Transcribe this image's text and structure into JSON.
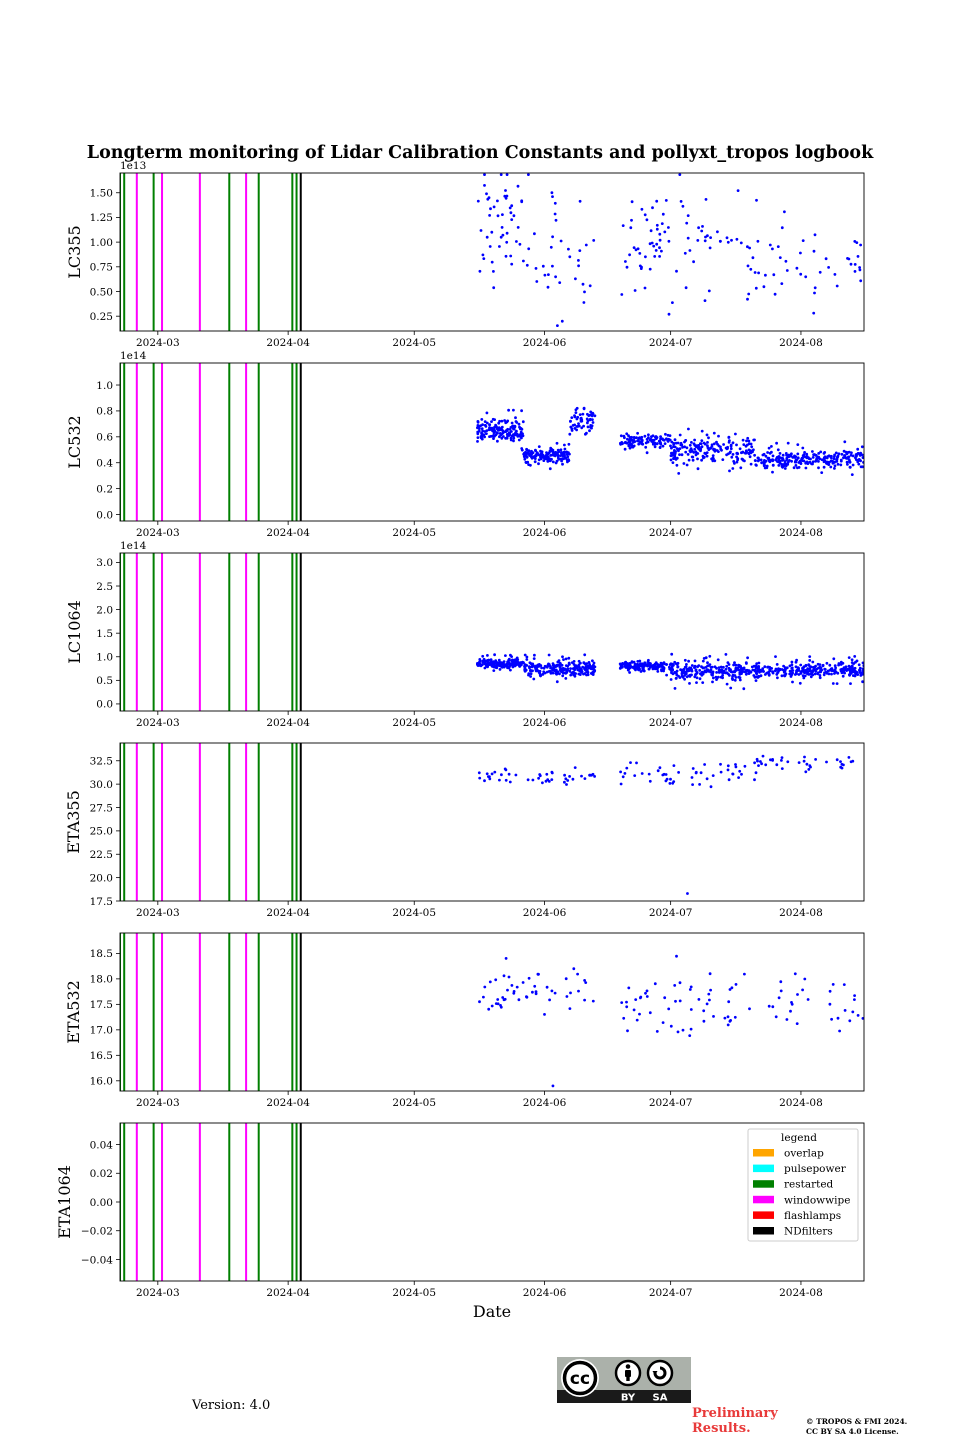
{
  "figure": {
    "title": "Longterm monitoring of Lidar Calibration Constants and pollyxt_tropos logbook",
    "xlabel": "Date"
  },
  "footer": {
    "version": "Version: 4.0",
    "preliminary": "Preliminary\nResults.",
    "copyright": "© TROPOS & FMI 2024.\nCC BY SA 4.0 License.",
    "cc_badge": {
      "by": "BY",
      "sa": "SA",
      "cc": "cc"
    }
  },
  "colors": {
    "overlap": "#ffa500",
    "pulsepower": "#00ffff",
    "restarted": "#008000",
    "windowwipe": "#ff00ff",
    "flashlamps": "#ff0000",
    "NDfilters": "#000000",
    "points": "#0000ff"
  },
  "chart_data": {
    "type": "scatter",
    "x_axis": {
      "type": "date",
      "range": [
        "2024-02-21",
        "2024-08-16"
      ],
      "ticks": [
        {
          "date": "2024-03-01",
          "label": "2024-03"
        },
        {
          "date": "2024-04-01",
          "label": "2024-04"
        },
        {
          "date": "2024-05-01",
          "label": "2024-05"
        },
        {
          "date": "2024-06-01",
          "label": "2024-06"
        },
        {
          "date": "2024-07-01",
          "label": "2024-07"
        },
        {
          "date": "2024-08-01",
          "label": "2024-08"
        }
      ]
    },
    "logbook": {
      "legend_title": "legend",
      "legend_placement": "top-right of last panel",
      "categories": [
        "overlap",
        "pulsepower",
        "restarted",
        "windowwipe",
        "flashlamps",
        "NDfilters"
      ],
      "events": [
        {
          "date": "2024-02-21",
          "type": "restarted"
        },
        {
          "date": "2024-02-22",
          "type": "restarted"
        },
        {
          "date": "2024-02-25",
          "type": "windowwipe"
        },
        {
          "date": "2024-02-29",
          "type": "restarted"
        },
        {
          "date": "2024-03-02",
          "type": "windowwipe"
        },
        {
          "date": "2024-03-11",
          "type": "windowwipe"
        },
        {
          "date": "2024-03-18",
          "type": "restarted"
        },
        {
          "date": "2024-03-22",
          "type": "windowwipe"
        },
        {
          "date": "2024-03-25",
          "type": "restarted"
        },
        {
          "date": "2024-04-02",
          "type": "restarted"
        },
        {
          "date": "2024-04-03",
          "type": "restarted"
        },
        {
          "date": "2024-04-04",
          "type": "NDfilters"
        }
      ]
    },
    "panels": [
      {
        "ylabel": "LC355",
        "offset_label": "1e13",
        "ylim": [
          0.1,
          1.7
        ],
        "yticks": [
          {
            "v": 0.25,
            "l": "0.25"
          },
          {
            "v": 0.5,
            "l": "0.50"
          },
          {
            "v": 0.75,
            "l": "0.75"
          },
          {
            "v": 1.0,
            "l": "1.00"
          },
          {
            "v": 1.25,
            "l": "1.25"
          },
          {
            "v": 1.5,
            "l": "1.50"
          }
        ],
        "series": [
          {
            "start": "2024-05-16",
            "end": "2024-05-26",
            "n": 45,
            "base": 1.2,
            "spread": 0.5,
            "outlier": 0.1
          },
          {
            "start": "2024-05-26",
            "end": "2024-06-13",
            "n": 40,
            "base": 0.9,
            "spread": 0.55,
            "outlier": 0.1
          },
          {
            "start": "2024-06-19",
            "end": "2024-07-01",
            "n": 45,
            "base": 1.0,
            "spread": 0.5,
            "outlier": 0.1
          },
          {
            "start": "2024-07-01",
            "end": "2024-07-21",
            "n": 40,
            "base": 1.0,
            "spread": 0.5,
            "outlier": 0.1
          },
          {
            "start": "2024-07-21",
            "end": "2024-08-16",
            "n": 45,
            "base": 0.8,
            "spread": 0.35,
            "outlier": 0.1
          }
        ]
      },
      {
        "ylabel": "LC532",
        "offset_label": "1e14",
        "ylim": [
          -0.05,
          1.17
        ],
        "yticks": [
          {
            "v": 0.0,
            "l": "0.0"
          },
          {
            "v": 0.2,
            "l": "0.2"
          },
          {
            "v": 0.4,
            "l": "0.4"
          },
          {
            "v": 0.6,
            "l": "0.6"
          },
          {
            "v": 0.8,
            "l": "0.8"
          },
          {
            "v": 1.0,
            "l": "1.0"
          }
        ],
        "series": [
          {
            "start": "2024-05-16",
            "end": "2024-05-27",
            "n": 160,
            "base": 0.65,
            "spread": 0.08,
            "outlier": 0.05
          },
          {
            "start": "2024-05-27",
            "end": "2024-06-07",
            "n": 160,
            "base": 0.45,
            "spread": 0.06,
            "outlier": 0.05
          },
          {
            "start": "2024-06-07",
            "end": "2024-06-13",
            "n": 60,
            "base": 0.72,
            "spread": 0.1,
            "outlier": 0.1
          },
          {
            "start": "2024-06-19",
            "end": "2024-07-01",
            "n": 110,
            "base": 0.57,
            "spread": 0.05,
            "outlier": 0.05
          },
          {
            "start": "2024-07-01",
            "end": "2024-07-21",
            "n": 200,
            "base": 0.5,
            "spread": 0.1,
            "outlier": 0.1
          },
          {
            "start": "2024-07-21",
            "end": "2024-08-16",
            "n": 260,
            "base": 0.43,
            "spread": 0.07,
            "outlier": 0.08
          }
        ]
      },
      {
        "ylabel": "LC1064",
        "offset_label": "1e14",
        "ylim": [
          -0.15,
          3.2
        ],
        "yticks": [
          {
            "v": 0.0,
            "l": "0.0"
          },
          {
            "v": 0.5,
            "l": "0.5"
          },
          {
            "v": 1.0,
            "l": "1.0"
          },
          {
            "v": 1.5,
            "l": "1.5"
          },
          {
            "v": 2.0,
            "l": "2.0"
          },
          {
            "v": 2.5,
            "l": "2.5"
          },
          {
            "v": 3.0,
            "l": "3.0"
          }
        ],
        "series": [
          {
            "start": "2024-05-16",
            "end": "2024-05-27",
            "n": 170,
            "base": 0.85,
            "spread": 0.1,
            "outlier": 0.04
          },
          {
            "start": "2024-05-27",
            "end": "2024-06-13",
            "n": 230,
            "base": 0.75,
            "spread": 0.15,
            "outlier": 0.08
          },
          {
            "start": "2024-06-19",
            "end": "2024-07-01",
            "n": 150,
            "base": 0.8,
            "spread": 0.1,
            "outlier": 0.05
          },
          {
            "start": "2024-07-01",
            "end": "2024-07-21",
            "n": 220,
            "base": 0.7,
            "spread": 0.2,
            "outlier": 0.1
          },
          {
            "start": "2024-07-21",
            "end": "2024-08-16",
            "n": 280,
            "base": 0.72,
            "spread": 0.15,
            "outlier": 0.08
          }
        ]
      },
      {
        "ylabel": "ETA355",
        "offset_label": "",
        "ylim": [
          17.5,
          34.4
        ],
        "yticks": [
          {
            "v": 17.5,
            "l": "17.5"
          },
          {
            "v": 20.0,
            "l": "20.0"
          },
          {
            "v": 22.5,
            "l": "22.5"
          },
          {
            "v": 25.0,
            "l": "25.0"
          },
          {
            "v": 27.5,
            "l": "27.5"
          },
          {
            "v": 30.0,
            "l": "30.0"
          },
          {
            "v": 32.5,
            "l": "32.5"
          }
        ],
        "series": [
          {
            "start": "2024-05-16",
            "end": "2024-06-13",
            "n": 45,
            "base": 30.8,
            "spread": 0.9,
            "outlier": 0.0
          },
          {
            "start": "2024-06-19",
            "end": "2024-07-21",
            "n": 50,
            "base": 31.0,
            "spread": 1.2,
            "outlier": 0.0
          },
          {
            "start": "2024-07-21",
            "end": "2024-08-16",
            "n": 35,
            "base": 32.3,
            "spread": 1.0,
            "outlier": 0.0
          }
        ],
        "points": [
          {
            "date": "2024-07-05",
            "value": 18.3
          }
        ]
      },
      {
        "ylabel": "ETA532",
        "offset_label": "",
        "ylim": [
          15.8,
          18.9
        ],
        "yticks": [
          {
            "v": 16.0,
            "l": "16.0"
          },
          {
            "v": 16.5,
            "l": "16.5"
          },
          {
            "v": 17.0,
            "l": "17.0"
          },
          {
            "v": 17.5,
            "l": "17.5"
          },
          {
            "v": 18.0,
            "l": "18.0"
          },
          {
            "v": 18.5,
            "l": "18.5"
          }
        ],
        "series": [
          {
            "start": "2024-05-16",
            "end": "2024-06-13",
            "n": 50,
            "base": 17.8,
            "spread": 0.45,
            "outlier": 0.0
          },
          {
            "start": "2024-06-19",
            "end": "2024-07-21",
            "n": 55,
            "base": 17.5,
            "spread": 0.7,
            "outlier": 0.0
          },
          {
            "start": "2024-07-21",
            "end": "2024-08-16",
            "n": 30,
            "base": 17.5,
            "spread": 0.6,
            "outlier": 0.0
          }
        ],
        "points": [
          {
            "date": "2024-06-03",
            "value": 15.9
          }
        ]
      },
      {
        "ylabel": "ETA1064",
        "offset_label": "",
        "ylim": [
          -0.055,
          0.055
        ],
        "yticks": [
          {
            "v": -0.04,
            "l": "−0.04"
          },
          {
            "v": -0.02,
            "l": "−0.02"
          },
          {
            "v": 0.0,
            "l": "0.00"
          },
          {
            "v": 0.02,
            "l": "0.02"
          },
          {
            "v": 0.04,
            "l": "0.04"
          }
        ],
        "series": [],
        "show_legend": true
      }
    ]
  }
}
